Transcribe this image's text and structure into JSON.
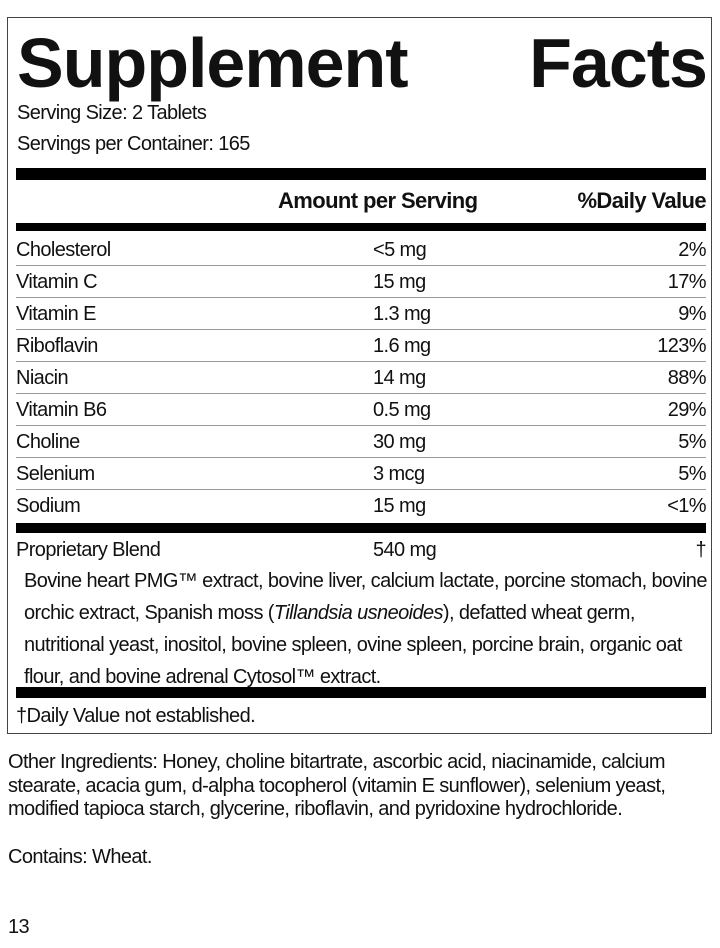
{
  "title_words": [
    "Supplement",
    "Facts"
  ],
  "serving_size": "Serving Size: 2 Tablets",
  "servings_per_container": "Servings per Container: 165",
  "header": {
    "amount": "Amount per Serving",
    "daily_value": "%Daily Value"
  },
  "nutrients": [
    {
      "name": "Cholesterol",
      "amount": "<5 mg",
      "dv": "2%"
    },
    {
      "name": "Vitamin C",
      "amount": "15 mg",
      "dv": "17%"
    },
    {
      "name": "Vitamin E",
      "amount": "1.3 mg",
      "dv": "9%"
    },
    {
      "name": "Riboflavin",
      "amount": "1.6 mg",
      "dv": "123%"
    },
    {
      "name": "Niacin",
      "amount": "14 mg",
      "dv": "88%"
    },
    {
      "name": "Vitamin B6",
      "amount": "0.5 mg",
      "dv": "29%"
    },
    {
      "name": "Choline",
      "amount": "30 mg",
      "dv": "5%"
    },
    {
      "name": "Selenium",
      "amount": "3 mcg",
      "dv": "5%"
    },
    {
      "name": "Sodium",
      "amount": "15 mg",
      "dv": "<1%"
    }
  ],
  "blend": {
    "name": "Proprietary Blend",
    "amount": "540 mg",
    "dv": "†",
    "text_before": "Bovine heart PMG™ extract, bovine liver, calcium lactate, porcine stomach, bovine orchic extract, Spanish moss (",
    "text_italic": "Tillandsia usneoides",
    "text_after": "), defatted wheat germ, nutritional yeast, inositol, bovine spleen, ovine spleen, porcine brain, organic oat flour, and bovine adrenal Cytosol™ extract."
  },
  "footnote": "†Daily Value not established.",
  "other_ingredients": "Other Ingredients: Honey, choline bitartrate, ascorbic acid, niacinamide, calcium stearate, acacia gum, d-alpha tocopherol (vitamin E sunflower), selenium yeast, modified tapioca starch, glycerine, riboflavin, and pyridoxine hydrochloride.",
  "contains": "Contains: Wheat.",
  "page_number": "13"
}
